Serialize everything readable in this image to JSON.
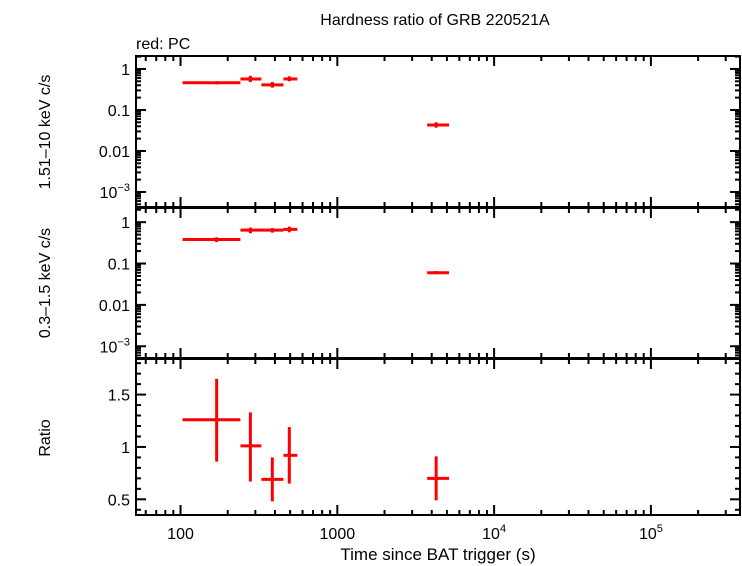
{
  "chart_data": {
    "type": "scatter",
    "title": "Hardness ratio of GRB 220521A",
    "subtitle": "red: PC",
    "xlabel": "Time since BAT trigger (s)",
    "xscale": "log",
    "xlim": [
      52,
      370000
    ],
    "x_ticks": [
      {
        "v": 100,
        "label": "100"
      },
      {
        "v": 1000,
        "label": "1000"
      },
      {
        "v": 10000,
        "label": "10",
        "exp": "4"
      },
      {
        "v": 100000,
        "label": "10",
        "exp": "5"
      }
    ],
    "color": "#ff0000",
    "x": [
      170,
      279,
      385,
      494,
      4270
    ],
    "x_lo": [
      103,
      241,
      328,
      453,
      3740
    ],
    "x_hi": [
      241,
      328,
      453,
      556,
      5160
    ],
    "panels": [
      {
        "name": "hard",
        "ylabel": "1.51–10 keV c/s",
        "yscale": "log",
        "ylim": [
          0.00043,
          2.07
        ],
        "y_ticks": [
          {
            "v": 1,
            "label": "1"
          },
          {
            "v": 0.1,
            "label": "0.1"
          },
          {
            "v": 0.01,
            "label": "0.01"
          },
          {
            "v": 0.001,
            "label": "10",
            "exp": "−3"
          }
        ],
        "values": [
          0.46,
          0.57,
          0.41,
          0.57,
          0.043
        ],
        "err_lo": [
          0.42,
          0.48,
          0.35,
          0.5,
          0.037
        ],
        "err_hi": [
          0.5,
          0.68,
          0.48,
          0.66,
          0.05
        ]
      },
      {
        "name": "soft",
        "ylabel": "0.3–1.5 keV c/s",
        "yscale": "log",
        "ylim": [
          0.00052,
          2.2
        ],
        "y_ticks": [
          {
            "v": 1,
            "label": "1"
          },
          {
            "v": 0.1,
            "label": "0.1"
          },
          {
            "v": 0.01,
            "label": "0.01"
          },
          {
            "v": 0.001,
            "label": "10",
            "exp": "−3"
          }
        ],
        "values": [
          0.38,
          0.64,
          0.64,
          0.67,
          0.06
        ],
        "err_lo": [
          0.33,
          0.54,
          0.56,
          0.57,
          0.055
        ],
        "err_hi": [
          0.43,
          0.74,
          0.72,
          0.78,
          0.066
        ]
      },
      {
        "name": "ratio",
        "ylabel": "Ratio",
        "yscale": "linear",
        "ylim": [
          0.35,
          1.84
        ],
        "y_ticks": [
          {
            "v": 1.5,
            "label": "1.5"
          },
          {
            "v": 1,
            "label": "1"
          },
          {
            "v": 0.5,
            "label": "0.5"
          }
        ],
        "values": [
          1.26,
          1.01,
          0.69,
          0.92,
          0.7
        ],
        "err_lo": [
          0.86,
          0.67,
          0.48,
          0.65,
          0.49
        ],
        "err_hi": [
          1.65,
          1.33,
          0.9,
          1.19,
          0.91
        ]
      }
    ]
  }
}
